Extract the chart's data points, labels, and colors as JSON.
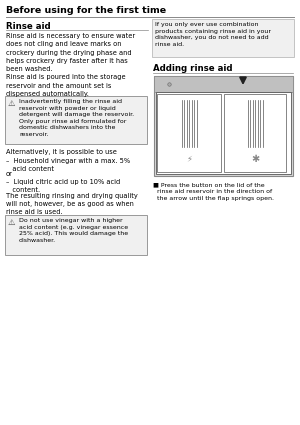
{
  "page_title": "Before using for the first time",
  "section_title": "Rinse aid",
  "body_text_1": "Rinse aid is necessary to ensure water\ndoes not cling and leave marks on\ncrockery during the drying phase and\nhelps crockery dry faster after it has\nbeen washed.\nRinse aid is poured into the storage\nreservoir and the amount set is\ndispensed automatically.",
  "warning_box_1": "Inadvertently filling the rinse aid\nreservoir with powder or liquid\ndetergent will damage the reservoir.\nOnly pour rinse aid formulated for\ndomestic dishwashers into the\nreservoir.",
  "body_text_2": "Alternatively, it is possible to use",
  "bullet_1": "–  Household vinegar with a max. 5%\n   acid content",
  "or_text": "or",
  "bullet_2": "–  Liquid citric acid up to 10% acid\n   content.",
  "body_text_3": "The resulting rinsing and drying quality\nwill not, however, be as good as when\nrinse aid is used.",
  "warning_box_2": "Do not use vinegar with a higher\nacid content (e.g. vinegar essence\n25% acid). This would damage the\ndishwasher.",
  "info_box_text": "If you only ever use combination\nproducts containing rinse aid in your\ndishwasher, you do not need to add\nrinse aid.",
  "adding_title": "Adding rinse aid",
  "press_text": "■ Press the button on the lid of the\n  rinse aid reservoir in the direction of\n  the arrow until the flap springs open.",
  "bg_color": "#ffffff",
  "text_color": "#000000",
  "warn_border": "#999999",
  "warn_bg": "#f0f0f0",
  "info_border": "#bbbbbb",
  "diag_bg": "#d8d8d8",
  "diag_border": "#888888"
}
